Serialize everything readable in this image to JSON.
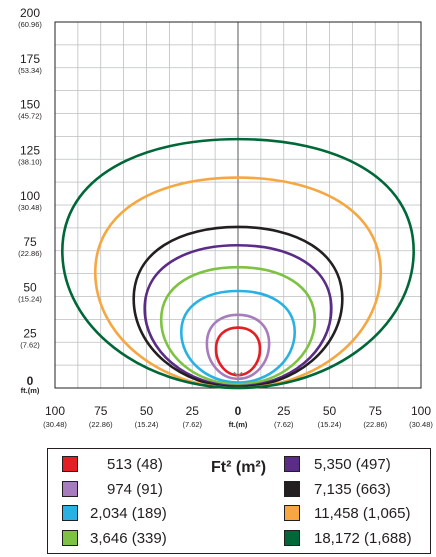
{
  "chart_data": {
    "type": "line",
    "title": "",
    "unit_label": "ft.(m)",
    "y_ticks": [
      {
        "value": 0,
        "main": "0",
        "sub": "ft.(m)"
      },
      {
        "value": 25,
        "main": "25",
        "sub": "(7.62)"
      },
      {
        "value": 50,
        "main": "50",
        "sub": "(15.24)"
      },
      {
        "value": 75,
        "main": "75",
        "sub": "(22.86)"
      },
      {
        "value": 100,
        "main": "100",
        "sub": "(30.48)"
      },
      {
        "value": 125,
        "main": "125",
        "sub": "(38.10)"
      },
      {
        "value": 150,
        "main": "150",
        "sub": "(45.72)"
      },
      {
        "value": 175,
        "main": "175",
        "sub": "(53.34)"
      },
      {
        "value": 200,
        "main": "200",
        "sub": "(60.96)"
      }
    ],
    "x_ticks": [
      {
        "value": -100,
        "main": "100",
        "sub": "(30.48)"
      },
      {
        "value": -75,
        "main": "75",
        "sub": "(22.86)"
      },
      {
        "value": -50,
        "main": "50",
        "sub": "(15.24)"
      },
      {
        "value": -25,
        "main": "25",
        "sub": "(7.62)"
      },
      {
        "value": 0,
        "main": "0",
        "sub": "ft.(m)"
      },
      {
        "value": 25,
        "main": "25",
        "sub": "(7.62)"
      },
      {
        "value": 50,
        "main": "50",
        "sub": "(15.24)"
      },
      {
        "value": 75,
        "main": "75",
        "sub": "(22.86)"
      },
      {
        "value": 100,
        "main": "100",
        "sub": "(30.48)"
      }
    ],
    "xlim": [
      -100,
      100
    ],
    "ylim": [
      0,
      200
    ],
    "grid": true,
    "legend_title": "Ft² (m²)",
    "series": [
      {
        "name": "513 (48)",
        "color": "#e31e24",
        "half_width": 12,
        "bottom": 7,
        "top": 33
      },
      {
        "name": "974 (91)",
        "color": "#a77cbc",
        "half_width": 17,
        "bottom": 5,
        "top": 40
      },
      {
        "name": "2,034 (189)",
        "color": "#29b1e4",
        "half_width": 31,
        "bottom": 3,
        "top": 53
      },
      {
        "name": "3,646 (339)",
        "color": "#7dc242",
        "half_width": 42,
        "bottom": 2,
        "top": 66
      },
      {
        "name": "5,350 (497)",
        "color": "#5b2c86",
        "half_width": 51,
        "bottom": 1,
        "top": 78
      },
      {
        "name": "7,135 (663)",
        "color": "#231f20",
        "half_width": 57,
        "bottom": 0.5,
        "top": 88
      },
      {
        "name": "11,458 (1,065)",
        "color": "#f6a742",
        "half_width": 78,
        "bottom": 0,
        "top": 115
      },
      {
        "name": "18,172 (1,688)",
        "color": "#006838",
        "half_width": 96,
        "bottom": 0,
        "top": 136
      }
    ]
  }
}
